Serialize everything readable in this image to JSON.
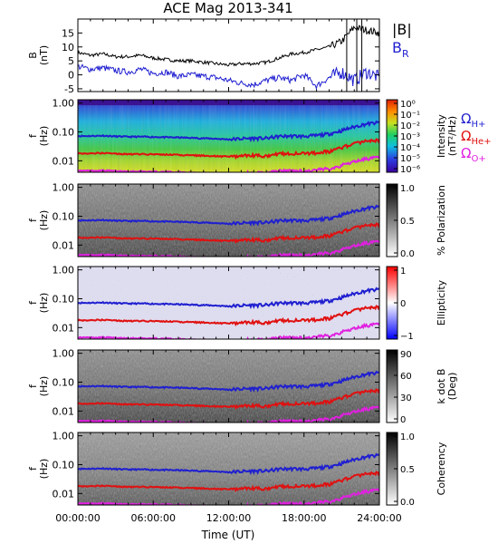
{
  "title": "ACE Mag 2013-341",
  "xlabel": "Time (UT)",
  "x_ticks": [
    "00:00:00",
    "06:00:00",
    "12:00:00",
    "18:00:00",
    "24:00:00"
  ],
  "panels": [
    {
      "key": "b",
      "ylabel1": "B",
      "ylabel2": "(nT)",
      "yticks": [
        "15",
        "10",
        "5",
        "0",
        "-5"
      ]
    },
    {
      "key": "intensity",
      "ylabel1": "f",
      "ylabel2": "(Hz)",
      "yticks": [
        "1.00",
        "0.10",
        "0.01"
      ],
      "cbar_title1": "Intensity",
      "cbar_title2": "(nT²/Hz)",
      "cbar_ticks": [
        "10⁰",
        "10⁻¹",
        "10⁻²",
        "10⁻³",
        "10⁻⁴",
        "10⁻⁵",
        "10⁻⁶"
      ]
    },
    {
      "key": "polarization",
      "ylabel1": "f",
      "ylabel2": "(Hz)",
      "yticks": [
        "1.00",
        "0.10",
        "0.01"
      ],
      "cbar_title1": "% Polarization",
      "cbar_title2": "",
      "cbar_ticks": [
        "1.0",
        "0.5",
        "0.0"
      ]
    },
    {
      "key": "ellipticity",
      "ylabel1": "f",
      "ylabel2": "(Hz)",
      "yticks": [
        "1.00",
        "0.10",
        "0.01"
      ],
      "cbar_title1": "Ellipticity",
      "cbar_title2": "",
      "cbar_ticks": [
        "1",
        "0",
        "−1"
      ]
    },
    {
      "key": "kdotb",
      "ylabel1": "f",
      "ylabel2": "(Hz)",
      "yticks": [
        "1.00",
        "0.10",
        "0.01"
      ],
      "cbar_title1": "k dot B",
      "cbar_title2": "(Deg)",
      "cbar_ticks": [
        "90",
        "60",
        "30",
        "0"
      ]
    },
    {
      "key": "coherency",
      "ylabel1": "f",
      "ylabel2": "(Hz)",
      "yticks": [
        "1.00",
        "0.10",
        "0.01"
      ],
      "cbar_title1": "Coherency",
      "cbar_title2": "",
      "cbar_ticks": [
        "1.0",
        "0.5",
        "0.0"
      ]
    }
  ],
  "legend_b": [
    {
      "main": "|B|",
      "sub": "",
      "color": "#000000"
    },
    {
      "main": "B",
      "sub": "R",
      "color": "#1f1fd0"
    }
  ],
  "legend_gyro": [
    {
      "main": "Ω",
      "sub": "H+",
      "color": "#1f1fd0"
    },
    {
      "main": "Ω",
      "sub": "He+",
      "color": "#e01010"
    },
    {
      "main": "Ω",
      "sub": "O+",
      "color": "#e020e0"
    }
  ],
  "chart_data": [
    {
      "type": "line",
      "panel": "b",
      "x_hours": [
        0,
        1,
        2,
        3,
        4,
        5,
        6,
        7,
        8,
        9,
        10,
        11,
        12,
        13,
        14,
        15,
        16,
        17,
        18,
        19,
        20,
        21,
        22,
        23,
        24
      ],
      "xlim": [
        0,
        24
      ],
      "ylim": [
        -6,
        20
      ],
      "series": [
        {
          "name": "|B|",
          "color": "#000000",
          "values": [
            8,
            7,
            7.5,
            6.5,
            6.5,
            7,
            6,
            5.5,
            5,
            5,
            4.5,
            4,
            3.5,
            4,
            4,
            4.5,
            6,
            7.5,
            8,
            9,
            10,
            12,
            17,
            16,
            15
          ]
        },
        {
          "name": "B_R",
          "color": "#1f1fd0",
          "values": [
            3,
            2,
            2.5,
            1.5,
            1,
            2,
            0.5,
            1,
            -0.5,
            0,
            -0.5,
            -1,
            -2,
            -3,
            -3.5,
            -2,
            -1,
            -2,
            0,
            -4,
            -1,
            1,
            -2,
            1,
            -1
          ]
        }
      ]
    },
    {
      "type": "line",
      "panel": "gyrofrequencies",
      "yscale": "log",
      "x_hours": [
        0,
        1,
        2,
        3,
        4,
        5,
        6,
        7,
        8,
        9,
        10,
        11,
        12,
        13,
        14,
        15,
        16,
        17,
        18,
        19,
        20,
        21,
        22,
        23,
        24
      ],
      "xlim": [
        0,
        24
      ],
      "ylim": [
        0.004,
        1.3
      ],
      "series": [
        {
          "name": "Ω_H+",
          "color": "#1f1fd0",
          "values": [
            0.072,
            0.072,
            0.074,
            0.07,
            0.068,
            0.068,
            0.067,
            0.065,
            0.064,
            0.062,
            0.06,
            0.058,
            0.055,
            0.058,
            0.06,
            0.06,
            0.07,
            0.072,
            0.07,
            0.075,
            0.085,
            0.11,
            0.15,
            0.19,
            0.21
          ]
        },
        {
          "name": "Ω_He+",
          "color": "#e01010",
          "values": [
            0.018,
            0.018,
            0.0185,
            0.0175,
            0.017,
            0.017,
            0.0168,
            0.0163,
            0.016,
            0.0155,
            0.015,
            0.0145,
            0.0138,
            0.0145,
            0.015,
            0.015,
            0.0175,
            0.018,
            0.0175,
            0.019,
            0.021,
            0.028,
            0.038,
            0.048,
            0.052
          ]
        },
        {
          "name": "Ω_O+",
          "color": "#e020e0",
          "values": [
            0.0045,
            0.0045,
            0.0046,
            0.0044,
            0.0043,
            0.0043,
            0.0042,
            0.0041,
            0.004,
            0.0039,
            0.0038,
            0.0036,
            0.0035,
            0.0036,
            0.0038,
            0.0038,
            0.0044,
            0.0045,
            0.0044,
            0.0047,
            0.0053,
            0.0069,
            0.0094,
            0.0119,
            0.0131
          ]
        }
      ]
    }
  ]
}
